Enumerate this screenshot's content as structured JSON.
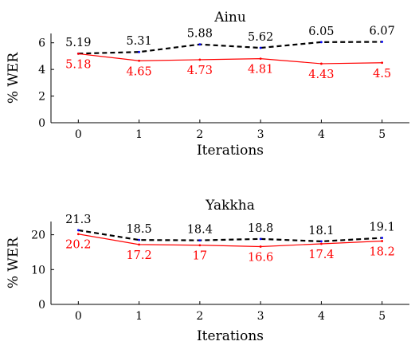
{
  "chart_data": [
    {
      "type": "line",
      "title": "Ainu",
      "xlabel": "Iterations",
      "ylabel": "% WER",
      "x": [
        0,
        1,
        2,
        3,
        4,
        5
      ],
      "xlim": [
        -0.45,
        5.45
      ],
      "ylim": [
        0,
        6.7
      ],
      "yticks": [
        0,
        2,
        4,
        6
      ],
      "grid": false,
      "series": [
        {
          "values": [
            5.19,
            5.31,
            5.88,
            5.62,
            6.05,
            6.07
          ],
          "labels": [
            "5.19",
            "5.31",
            "5.88",
            "5.62",
            "6.05",
            "6.07"
          ],
          "color": "#000000",
          "marker_color": "#0000ff",
          "style": "dashed",
          "label_position": "above"
        },
        {
          "values": [
            5.18,
            4.65,
            4.73,
            4.81,
            4.43,
            4.5
          ],
          "labels": [
            "5.18",
            "4.65",
            "4.73",
            "4.81",
            "4.43",
            "4.5"
          ],
          "color": "#ff0000",
          "style": "solid",
          "label_position": "below"
        }
      ]
    },
    {
      "type": "line",
      "title": "Yakkha",
      "xlabel": "Iterations",
      "ylabel": "% WER",
      "x": [
        0,
        1,
        2,
        3,
        4,
        5
      ],
      "xlim": [
        -0.45,
        5.45
      ],
      "ylim": [
        0,
        23.8
      ],
      "yticks": [
        0,
        10,
        20
      ],
      "grid": false,
      "series": [
        {
          "values": [
            21.3,
            18.5,
            18.4,
            18.8,
            18.1,
            19.1
          ],
          "labels": [
            "21.3",
            "18.5",
            "18.4",
            "18.8",
            "18.1",
            "19.1"
          ],
          "color": "#000000",
          "marker_color": "#0000ff",
          "style": "dashed",
          "label_position": "above"
        },
        {
          "values": [
            20.2,
            17.2,
            17,
            16.6,
            17.4,
            18.2
          ],
          "labels": [
            "20.2",
            "17.2",
            "17",
            "16.6",
            "17.4",
            "18.2"
          ],
          "color": "#ff0000",
          "style": "solid",
          "label_position": "below"
        }
      ]
    }
  ]
}
